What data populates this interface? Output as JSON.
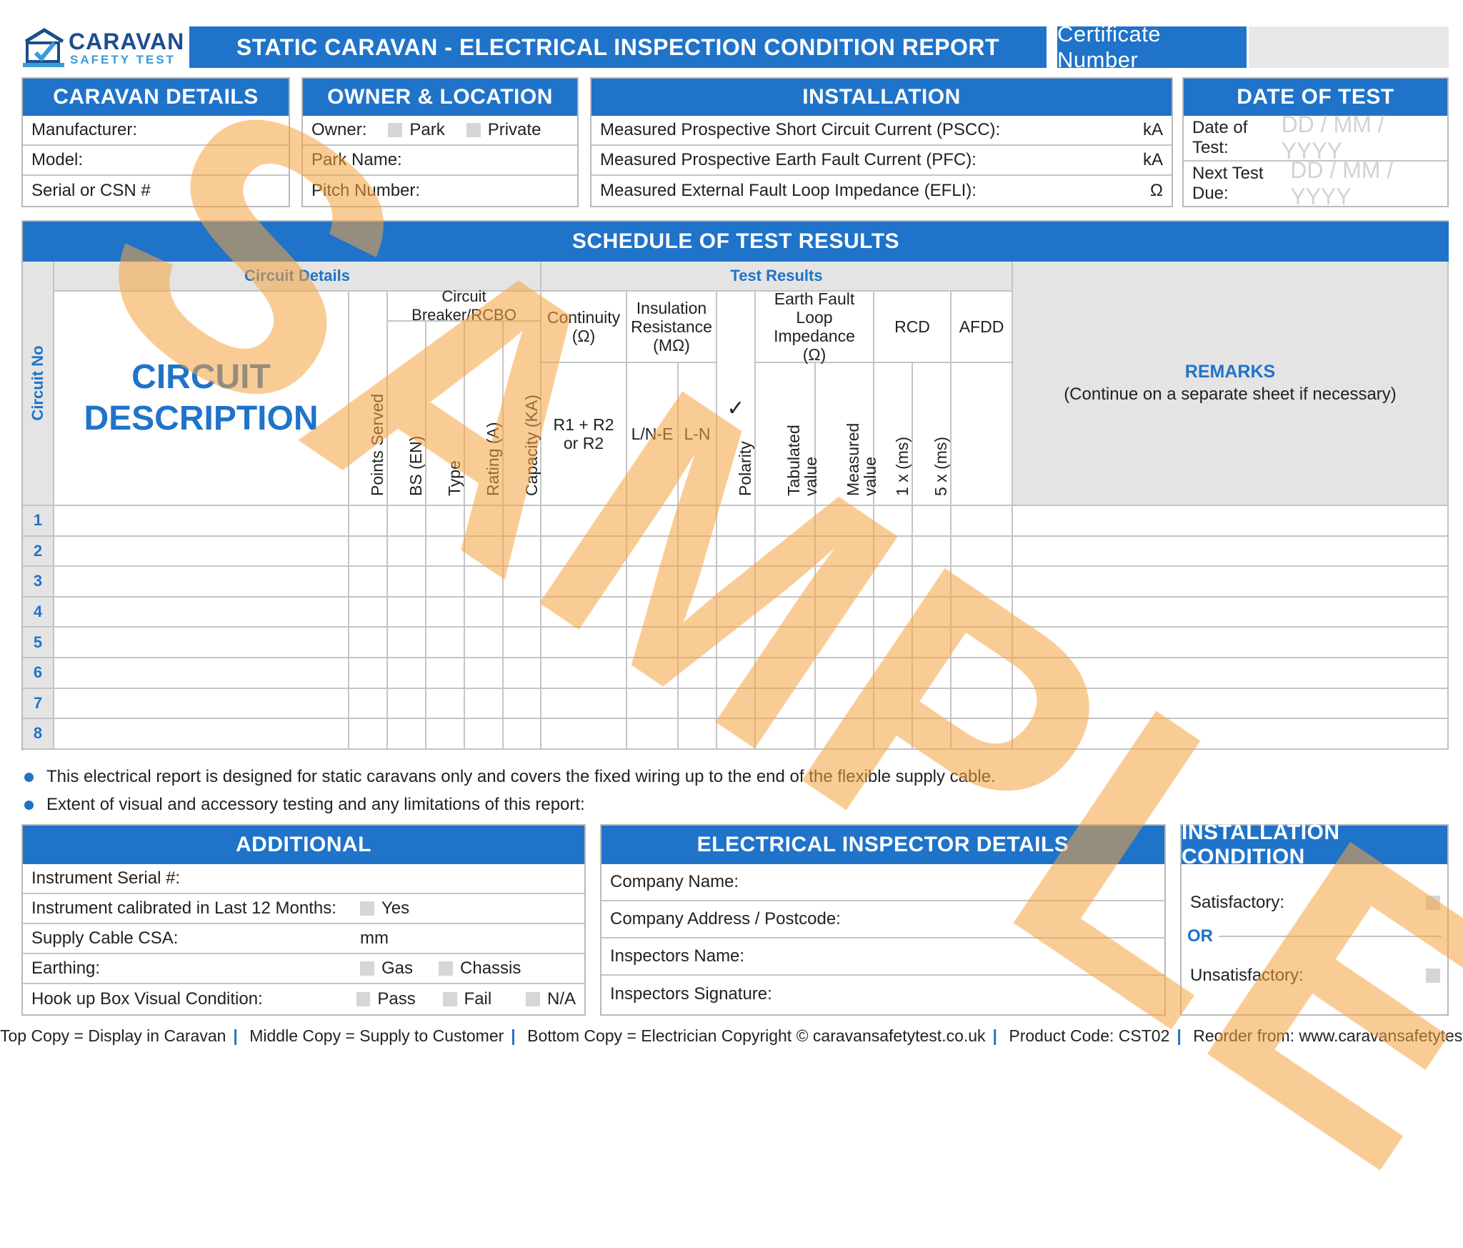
{
  "logo": {
    "line1": "CARAVAN",
    "line2": "SAFETY TEST"
  },
  "title": "STATIC CARAVAN - ELECTRICAL INSPECTION CONDITION REPORT",
  "certificate_label": "Certificate Number",
  "caravan_details": {
    "header": "CARAVAN DETAILS",
    "rows": [
      "Manufacturer:",
      "Model:",
      "Serial or CSN #"
    ]
  },
  "owner_location": {
    "header": "OWNER & LOCATION",
    "owner_label": "Owner:",
    "opt_park": "Park",
    "opt_private": "Private",
    "park_name": "Park Name:",
    "pitch_number": "Pitch Number:"
  },
  "installation": {
    "header": "INSTALLATION",
    "rows": [
      {
        "label": "Measured Prospective Short Circuit Current (PSCC):",
        "unit": "kA"
      },
      {
        "label": "Measured Prospective Earth Fault Current (PFC):",
        "unit": "kA"
      },
      {
        "label": "Measured External Fault Loop Impedance (EFLI):",
        "unit": "Ω"
      }
    ]
  },
  "date_of_test": {
    "header": "DATE OF TEST",
    "date_label": "Date of Test:",
    "next_label": "Next Test Due:",
    "placeholder": "DD / MM / YYYY"
  },
  "schedule": {
    "header": "SCHEDULE OF TEST RESULTS",
    "circuit_details": "Circuit Details",
    "test_results": "Test Results",
    "circuit_no": "Circuit No",
    "circuit_desc_1": "CIRCUIT",
    "circuit_desc_2": "DESCRIPTION",
    "breaker_group": "Circuit Breaker/RCBO",
    "points_served": "Points Served",
    "bs_en": "BS (EN)",
    "type": "Type",
    "rating": "Rating (A)",
    "capacity": "Capacity (KA)",
    "continuity": "Continuity (Ω)",
    "r1r2": "R1 + R2 or R2",
    "insulation": "Insulation Resistance (MΩ)",
    "ln_e": "L/N-E",
    "l_n": "L-N",
    "polarity_tick": "✓",
    "polarity": "Polarity",
    "earth_fault": "Earth Fault Loop Impedance (Ω)",
    "tabulated": "Tabulated value",
    "measured": "Measured value",
    "rcd": "RCD",
    "rcd_1x": "1 x (ms)",
    "rcd_5x": "5 x (ms)",
    "afdd": "AFDD",
    "remarks": "REMARKS",
    "remarks_note": "(Continue on a separate sheet if necessary)",
    "rows": [
      "1",
      "2",
      "3",
      "4",
      "5",
      "6",
      "7",
      "8"
    ]
  },
  "notes": [
    "This electrical report is designed for static caravans only and covers the fixed wiring up to the end of the flexible supply cable.",
    "Extent of visual and accessory testing and any limitations of this report:"
  ],
  "additional": {
    "header": "ADDITIONAL",
    "serial": "Instrument Serial #:",
    "calibrated": "Instrument calibrated in Last 12 Months:",
    "yes": "Yes",
    "csa": "Supply Cable CSA:",
    "mm": "mm",
    "earthing": "Earthing:",
    "gas": "Gas",
    "chassis": "Chassis",
    "hookup": "Hook up Box Visual Condition:",
    "pass": "Pass",
    "fail": "Fail",
    "na": "N/A"
  },
  "inspector": {
    "header": "ELECTRICAL INSPECTOR DETAILS",
    "rows": [
      "Company Name:",
      "Company Address / Postcode:",
      "Inspectors Name:",
      "Inspectors Signature:"
    ]
  },
  "condition": {
    "header": "INSTALLATION CONDITION",
    "satisfactory": "Satisfactory:",
    "or": "OR",
    "unsatisfactory": "Unsatisfactory:"
  },
  "footer": {
    "parts": [
      "Top Copy = Display in Caravan",
      "Middle Copy = Supply to Customer",
      "Bottom Copy = Electrician Copyright © caravansafetytest.co.uk",
      "Product Code: CST02",
      "Reorder from: www.caravansafetytest.co.uk"
    ],
    "separator": "|"
  },
  "watermark": "SAMPLE",
  "colors": {
    "brand_blue": "#1f73c9",
    "watermark_orange": "#f7a440",
    "grey_cell": "#e4e4e4"
  }
}
